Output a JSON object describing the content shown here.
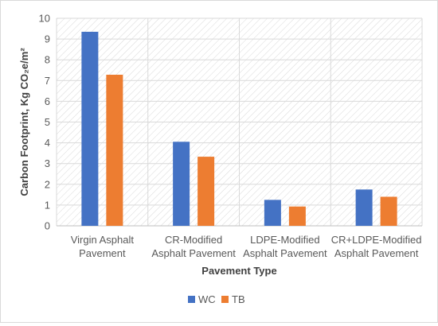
{
  "chart_data": {
    "type": "bar",
    "title": "",
    "xlabel": "Pavement Type",
    "ylabel": "Carbon Footprint, Kg CO₂e/m²",
    "ylim": [
      0,
      10
    ],
    "yticks": [
      "0",
      "1",
      "2",
      "3",
      "4",
      "5",
      "6",
      "7",
      "8",
      "9",
      "10"
    ],
    "categories": [
      [
        "Virgin Asphalt",
        "Pavement"
      ],
      [
        "CR-Modified",
        "Asphalt Pavement"
      ],
      [
        "LDPE-Modified",
        "Asphalt Pavement"
      ],
      [
        "CR+LDPE-Modified",
        "Asphalt Pavement"
      ]
    ],
    "series": [
      {
        "name": "WC",
        "color": "#4472c4",
        "values": [
          9.35,
          4.05,
          1.25,
          1.75
        ]
      },
      {
        "name": "TB",
        "color": "#ed7d31",
        "values": [
          7.28,
          3.33,
          0.93,
          1.4
        ]
      }
    ],
    "grid": true,
    "legend_position": "bottom",
    "plot_background": "hatched"
  }
}
